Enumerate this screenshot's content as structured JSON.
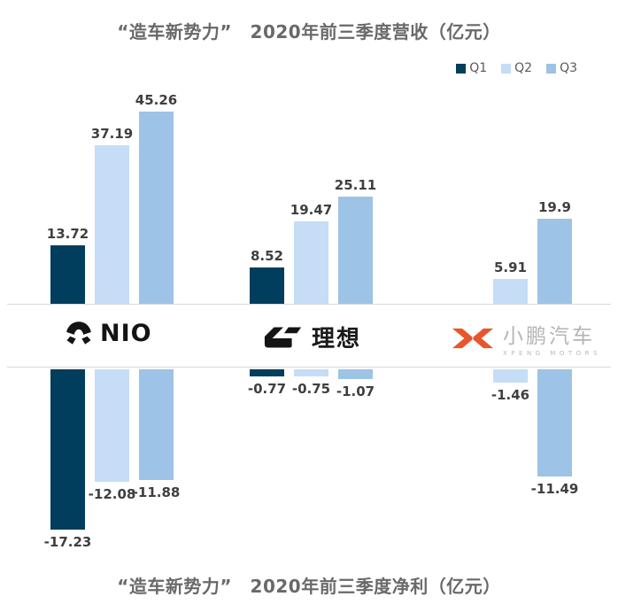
{
  "titles": {
    "top": "“造车新势力”　2020年前三季度营收（亿元）",
    "bottom": "“造车新势力”　2020年前三季度净利（亿元）"
  },
  "legend": [
    {
      "label": "Q1",
      "color": "#013D5C"
    },
    {
      "label": "Q2",
      "color": "#C5DDF6"
    },
    {
      "label": "Q3",
      "color": "#9DC3E6"
    }
  ],
  "companies": [
    {
      "name": "NIO",
      "logo_text": "NIO"
    },
    {
      "name": "理想",
      "logo_text": "理想"
    },
    {
      "name": "小鹏汽车",
      "logo_text": "小鹏汽车",
      "logo_subtext": "XPENG MOTORS"
    }
  ],
  "chart_data": [
    {
      "type": "bar",
      "title": "“造车新势力” 2020年前三季度营收（亿元）",
      "unit": "亿元",
      "categories": [
        "NIO",
        "理想",
        "小鹏汽车"
      ],
      "series": [
        {
          "name": "Q1",
          "values": [
            13.72,
            8.52,
            null
          ]
        },
        {
          "name": "Q2",
          "values": [
            37.19,
            19.47,
            5.91
          ]
        },
        {
          "name": "Q3",
          "values": [
            45.26,
            25.11,
            19.9
          ]
        }
      ],
      "legend_position": "top-right",
      "grid": false,
      "value_labels": true
    },
    {
      "type": "bar",
      "title": "“造车新势力” 2020年前三季度净利（亿元）",
      "unit": "亿元",
      "categories": [
        "NIO",
        "理想",
        "小鹏汽车"
      ],
      "series": [
        {
          "name": "Q1",
          "values": [
            -17.23,
            -0.77,
            null
          ]
        },
        {
          "name": "Q2",
          "values": [
            -12.08,
            -0.75,
            -1.46
          ]
        },
        {
          "name": "Q3",
          "values": [
            -11.88,
            -1.07,
            -11.49
          ]
        }
      ],
      "grid": false,
      "value_labels": true
    }
  ],
  "colors": {
    "q1": "#013D5C",
    "q2": "#C5DDF6",
    "q3": "#9DC3E6",
    "title_text": "#696969",
    "value_text": "#3F3F3F",
    "divider": "#D9D9D9",
    "xpeng_orange": "#E8562B",
    "logo_black": "#141414",
    "xpeng_text_gray": "#B5B5B5"
  }
}
